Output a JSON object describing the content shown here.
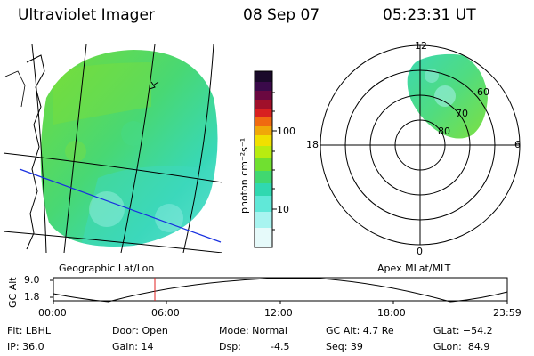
{
  "header": {
    "instrument": "Ultraviolet Imager",
    "date": "08 Sep 07",
    "time": "05:23:31 UT"
  },
  "colorbar": {
    "unit_label": "photon cm⁻²s⁻¹",
    "ticks": [
      "100",
      "10"
    ],
    "colors_top_to_bottom": [
      "#1a0a2a",
      "#3a0a4a",
      "#6a0840",
      "#a0102a",
      "#d82020",
      "#f06a10",
      "#f0a808",
      "#f0e000",
      "#b8ec10",
      "#70e030",
      "#40d870",
      "#30d8b0",
      "#60e8d8",
      "#a8f4f0",
      "#e6fafa"
    ]
  },
  "geo_panel": {
    "label": "Geographic Lat/Lon"
  },
  "polar_panel": {
    "label": "Apex MLat/MLT",
    "mlt_labels": {
      "top": "12",
      "left": "18",
      "right": "6",
      "bottom": "0"
    },
    "mlat_labels": [
      "60",
      "70",
      "80"
    ]
  },
  "altitude_plot": {
    "ylabel": "GC Alt",
    "yticks": [
      "9.0",
      "1.8"
    ],
    "xticks": [
      "00:00",
      "06:00",
      "12:00",
      "18:00",
      "23:59"
    ],
    "current_time_marker": "05:23"
  },
  "status": {
    "filter": "Flt: LBHL",
    "ip": "IP: 36.0",
    "door": "Door: Open",
    "gain": "Gain: 14",
    "mode": "Mode: Normal",
    "dsp": "Dsp:",
    "dsp_value": "-4.5",
    "gc_alt": "GC Alt: 4.7 Re",
    "seq": "Seq: 39",
    "glat": "GLat: −54.2",
    "glon": "GLon:  84.9"
  }
}
